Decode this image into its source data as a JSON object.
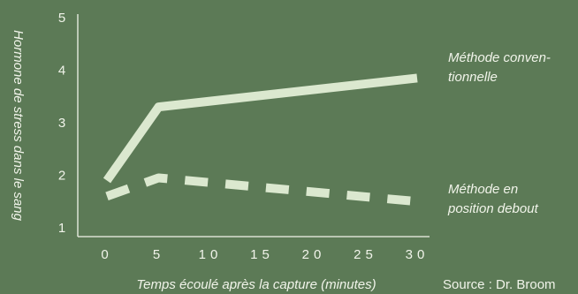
{
  "chart_data": {
    "type": "line",
    "xlabel": "Temps écoulé après la capture (minutes)",
    "ylabel": "Hormone de stress dans le sang",
    "x_ticks": [
      "0",
      "5",
      "10",
      "15",
      "20",
      "25",
      "30"
    ],
    "y_ticks": [
      "1",
      "2",
      "3",
      "4",
      "5"
    ],
    "xlim": [
      0,
      30
    ],
    "ylim": [
      1,
      5
    ],
    "legend_placement": "right, labels beside line ends",
    "series": [
      {
        "name": "Méthode conventionnelle",
        "name_lines": [
          "Méthode conven-",
          "tionnelle"
        ],
        "style": "solid",
        "x": [
          0,
          5,
          30
        ],
        "y": [
          1.9,
          3.3,
          3.85
        ]
      },
      {
        "name": "Méthode en position debout",
        "name_lines": [
          "Méthode en",
          "position debout"
        ],
        "style": "dashed",
        "x": [
          0,
          5,
          30
        ],
        "y": [
          1.6,
          1.95,
          1.5
        ]
      }
    ],
    "source": "Source : Dr. Broom",
    "colors": {
      "background": "#5c7a56",
      "line": "#dbe8cf",
      "text": "#f1f4ea",
      "axis": "#f1f4ea"
    }
  }
}
